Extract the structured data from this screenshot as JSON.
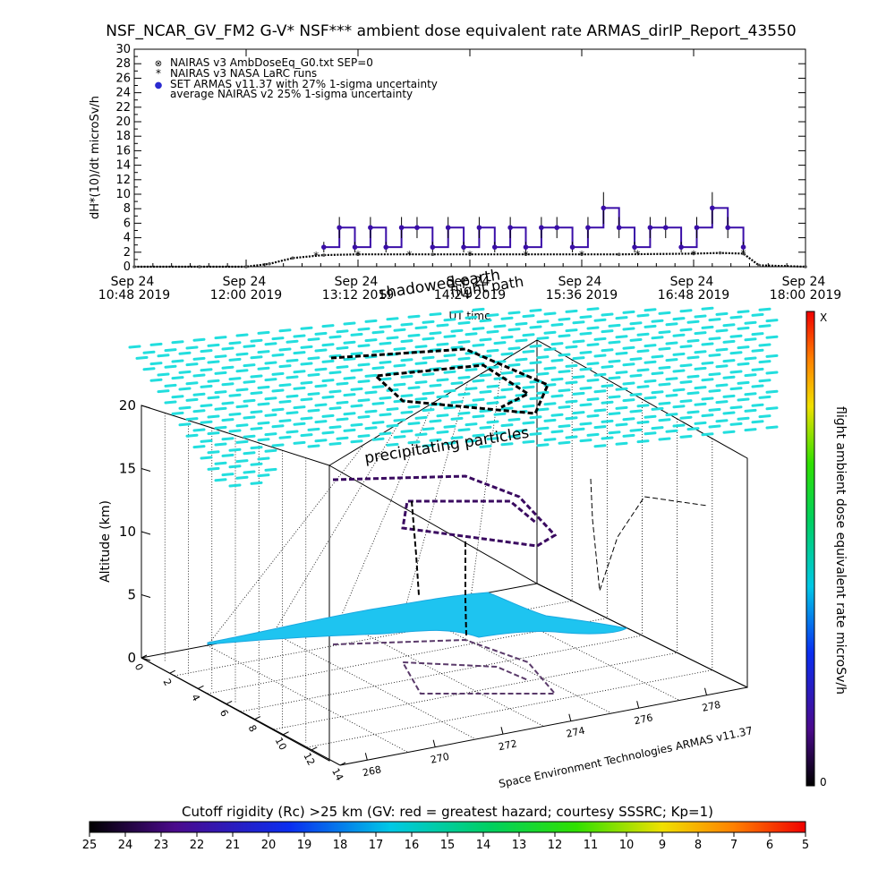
{
  "title": "NSF_NCAR_GV_FM2 G-V* NSF*** ambient dose equivalent rate ARMAS_dirIP_Report_43550",
  "time_panel": {
    "ylabel": "dH*(10)/dt microSv/h",
    "xlabel": "UT time",
    "y_ticks": [
      "0",
      "2",
      "4",
      "6",
      "8",
      "10",
      "12",
      "14",
      "16",
      "18",
      "20",
      "22",
      "24",
      "26",
      "28",
      "30"
    ],
    "x_ticks": [
      {
        "line1": "Sep 24",
        "line2": "10:48 2019"
      },
      {
        "line1": "Sep 24",
        "line2": "12:00 2019"
      },
      {
        "line1": "Sep 24",
        "line2": "13:12 2019"
      },
      {
        "line1": "Sep 24",
        "line2": "14:24 2019"
      },
      {
        "line1": "Sep 24",
        "line2": "15:36 2019"
      },
      {
        "line1": "Sep 24",
        "line2": "16:48 2019"
      },
      {
        "line1": "Sep 24",
        "line2": "18:00 2019"
      }
    ],
    "legend": [
      {
        "symbol": "⊗",
        "text": "NAIRAS v3 AmbDoseEq_G0.txt SEP=0"
      },
      {
        "symbol": "*",
        "text": "NAIRAS v3 NASA LaRC runs"
      },
      {
        "symbol": "●",
        "text": "SET ARMAS v11.37 with 27% 1-sigma uncertainty"
      },
      {
        "symbol": "",
        "text": "average NAIRAS v2 25% 1-sigma uncertainty"
      }
    ],
    "overlay_labels": {
      "earth_shadow": "shadowed earth",
      "flight_path": "flight path"
    }
  },
  "chart_data": {
    "type": "scatter",
    "title": "NSF_NCAR_GV_FM2 G-V* NSF*** ambient dose equivalent rate ARMAS_dirIP_Report_43550",
    "xlabel": "UT time",
    "ylabel": "dH*(10)/dt microSv/h",
    "xlim": [
      "2019-09-24T10:48",
      "2019-09-24T18:00"
    ],
    "ylim": [
      0,
      30
    ],
    "grid": false,
    "legend_position": "top-left",
    "series": [
      {
        "name": "NAIRAS v3 AmbDoseEq_G0.txt SEP=0",
        "x": [
          "10:48",
          "11:30",
          "12:00",
          "12:15",
          "12:30",
          "12:50",
          "13:12",
          "14:00",
          "14:24",
          "15:00",
          "15:36",
          "16:00",
          "16:48",
          "17:05",
          "17:20",
          "17:30",
          "18:00"
        ],
        "y": [
          0,
          0,
          0,
          0.4,
          1.2,
          1.6,
          1.7,
          1.7,
          1.7,
          1.7,
          1.7,
          1.7,
          1.8,
          1.9,
          1.8,
          0.2,
          0
        ]
      },
      {
        "name": "NAIRAS v3 NASA LaRC runs",
        "x": [
          "12:45",
          "13:12",
          "13:45",
          "14:24",
          "15:00",
          "15:36",
          "16:12",
          "16:48",
          "17:20"
        ],
        "y": [
          1.6,
          1.7,
          1.7,
          1.7,
          1.7,
          1.7,
          1.8,
          1.8,
          1.9
        ]
      },
      {
        "name": "SET ARMAS v11.37 with 27% 1-sigma uncertainty",
        "x": [
          "12:50",
          "13:00",
          "13:10",
          "13:20",
          "13:30",
          "13:40",
          "13:50",
          "14:00",
          "14:10",
          "14:20",
          "14:30",
          "14:40",
          "14:50",
          "15:00",
          "15:10",
          "15:20",
          "15:30",
          "15:40",
          "15:50",
          "16:00",
          "16:10",
          "16:20",
          "16:30",
          "16:40",
          "16:50",
          "17:00",
          "17:10",
          "17:20"
        ],
        "y": [
          2.7,
          5.4,
          2.7,
          5.4,
          2.7,
          5.4,
          5.4,
          2.7,
          5.4,
          2.7,
          5.4,
          2.7,
          5.4,
          2.7,
          5.4,
          5.4,
          2.7,
          5.4,
          8.1,
          5.4,
          2.7,
          5.4,
          5.4,
          2.7,
          5.4,
          8.1,
          5.4,
          2.7
        ]
      }
    ]
  },
  "globe_panel": {
    "zlabel": "Altitude (km)",
    "z_ticks": [
      "0",
      "5",
      "10",
      "15",
      "20"
    ],
    "lon_ticks": [
      "268",
      "270",
      "272",
      "274",
      "276",
      "278"
    ],
    "lat_ticks": [
      "0",
      "2",
      "4",
      "6",
      "8",
      "10",
      "12",
      "14"
    ],
    "particles_label": "precipitating particles",
    "credit": "Space Environment Technologies ARMAS v11.37"
  },
  "dose_colorbar": {
    "label": "flight ambient dose equivalent rate microSv/h",
    "top_label": "X",
    "bottom_label": "0"
  },
  "rigidity_colorbar": {
    "label": "Cutoff rigidity (Rc) >25 km (GV: red = greatest hazard; courtesy SSSRC; Kp=1)",
    "ticks": [
      "25",
      "24",
      "23",
      "22",
      "21",
      "20",
      "19",
      "18",
      "17",
      "16",
      "15",
      "14",
      "13",
      "12",
      "11",
      "10",
      "9",
      "8",
      "7",
      "6",
      "5"
    ]
  },
  "colors": {
    "armas": "#3a0ea8",
    "rigidity_field": "#22dede",
    "shadow_fill": "#1ec4f0",
    "path": "#000000"
  }
}
